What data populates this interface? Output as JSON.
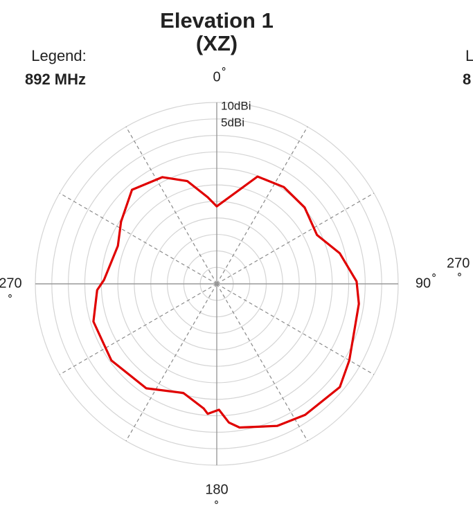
{
  "chart_data": {
    "type": "polar",
    "title": [
      "Elevation 1",
      "(XZ)"
    ],
    "legend_title": "Legend:",
    "theta": [
      0,
      20.8,
      34.7,
      49,
      64,
      76,
      89,
      98,
      120,
      130,
      146,
      157,
      171,
      175,
      179,
      184,
      186,
      197,
      214,
      234,
      253,
      267,
      272,
      291,
      303,
      318,
      333,
      344,
      354
    ],
    "series": [
      {
        "name": "892 MHz",
        "color": "#e00000",
        "values": [
          -21.5,
          -10.2,
          -9.3,
          -9.7,
          -11.2,
          -6.6,
          -2.6,
          -1.5,
          1.4,
          3.7,
          2.9,
          1.8,
          -0.9,
          -2.8,
          -6.8,
          -5.5,
          -7,
          -10.4,
          -6.8,
          -5.5,
          -5.9,
          -8.7,
          -10.8,
          -12.9,
          -10.4,
          -6.6,
          -8.7,
          -12.6,
          -18.6
        ]
      }
    ],
    "rlim": [
      -45,
      10
    ],
    "rgrid": [
      -40,
      -35,
      -30,
      -25,
      -20,
      -15,
      -10,
      -5,
      0
    ],
    "rticks": [
      {
        "value": 10,
        "label": "10dBi"
      },
      {
        "value": 5,
        "label": "5dBi"
      }
    ],
    "thetaticks": [
      {
        "value": 0,
        "label": "0",
        "unit": "˚"
      },
      {
        "value": 90,
        "label": "90",
        "unit": "˚"
      },
      {
        "value": 180,
        "label": "180",
        "unit": "˚"
      },
      {
        "value": 270,
        "label": "270",
        "unit": "˚"
      }
    ],
    "spokes": [
      30,
      60,
      120,
      150,
      210,
      240,
      300,
      330
    ],
    "cropped_neighbor": {
      "legend": "L",
      "series": "8",
      "angle": "270",
      "unit": "˚"
    }
  }
}
